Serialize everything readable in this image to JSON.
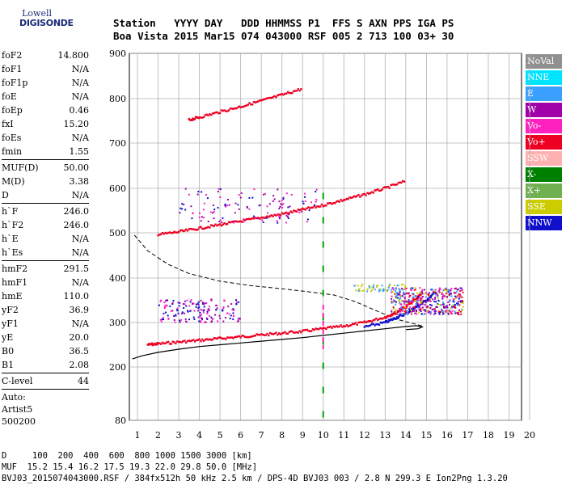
{
  "logo": {
    "line1": "Lowell",
    "line2": "DIGISONDE"
  },
  "header": {
    "row1": "Station   YYYY DAY   DDD HHMMSS P1  FFS S AXN PPS IGA PS",
    "row2": "Boa Vista 2015 Mar15 074 043000 RSF 005 2 713 100 03+ 30"
  },
  "params": [
    {
      "name": "foF2",
      "value": "14.800"
    },
    {
      "name": "foF1",
      "value": "N/A"
    },
    {
      "name": "foF1p",
      "value": "N/A"
    },
    {
      "name": "foE",
      "value": "N/A"
    },
    {
      "name": "foEp",
      "value": "0.46"
    },
    {
      "name": "fxI",
      "value": "15.20"
    },
    {
      "name": "foEs",
      "value": "N/A"
    },
    {
      "name": "fmin",
      "value": "1.55"
    },
    {
      "sep": true
    },
    {
      "name": "MUF(D)",
      "value": "50.00"
    },
    {
      "name": "M(D)",
      "value": "3.38"
    },
    {
      "name": "D",
      "value": "N/A"
    },
    {
      "sep": true
    },
    {
      "name": "h`F",
      "value": "246.0"
    },
    {
      "name": "h`F2",
      "value": "246.0"
    },
    {
      "name": "h`E",
      "value": "N/A"
    },
    {
      "name": "h`Es",
      "value": "N/A"
    },
    {
      "sep": true
    },
    {
      "name": "hmF2",
      "value": "291.5"
    },
    {
      "name": "hmF1",
      "value": "N/A"
    },
    {
      "name": "hmE",
      "value": "110.0"
    },
    {
      "name": "yF2",
      "value": "36.9"
    },
    {
      "name": "yF1",
      "value": "N/A"
    },
    {
      "name": "yE",
      "value": "20.0"
    },
    {
      "name": "B0",
      "value": "36.5"
    },
    {
      "name": "B1",
      "value": "2.08"
    },
    {
      "sep": true
    },
    {
      "name": "C-level",
      "value": "44"
    },
    {
      "sep": true
    }
  ],
  "autoscaling": {
    "line1": "Auto:",
    "line2": "Artist5",
    "line3": "500200"
  },
  "legend": [
    {
      "label": "NoVal",
      "color": "#909090"
    },
    {
      "label": "NNE",
      "color": "#00e5ff"
    },
    {
      "label": "E",
      "color": "#3aa0ff"
    },
    {
      "label": "W",
      "color": "#a000a8"
    },
    {
      "label": "Vo-",
      "color": "#ff20c0"
    },
    {
      "label": "Vo+",
      "color": "#ee0022"
    },
    {
      "label": "SSW",
      "color": "#ffb0b0"
    },
    {
      "label": "X-",
      "color": "#008000"
    },
    {
      "label": "X+",
      "color": "#70b050"
    },
    {
      "label": "SSE",
      "color": "#cccc00"
    },
    {
      "label": "NNW",
      "color": "#1010cc"
    }
  ],
  "footer": {
    "row1": "D     100  200  400  600  800 1000 1500 3000 [km]",
    "row2": "MUF  15.2 15.4 16.2 17.5 19.3 22.0 29.8 50.0 [MHz]",
    "row3": "BVJ03_2015074043000.RSF / 384fx512h 50 kHz 2.5 km / DPS-4D BVJ03 003 / 2.8 N 299.3 E Ion2Png 1.3.20"
  },
  "chart_data": {
    "type": "scatter",
    "xlim": [
      1,
      20
    ],
    "ylim": [
      80,
      900
    ],
    "x_ticks": [
      1,
      2,
      3,
      4,
      5,
      6,
      7,
      8,
      9,
      10,
      11,
      12,
      13,
      14,
      15,
      16,
      17,
      18,
      19,
      20
    ],
    "y_ticks": [
      80,
      200,
      300,
      400,
      500,
      600,
      700,
      800,
      900
    ],
    "grid": true,
    "legend_position": "right",
    "profile_curve": {
      "x": [
        0.75,
        1.2,
        2,
        3,
        4,
        5,
        6,
        7,
        8,
        9,
        10,
        11,
        12,
        13,
        14,
        14.5,
        14.8,
        14.6,
        14
      ],
      "y": [
        218,
        225,
        233,
        240,
        246,
        250,
        254,
        258,
        262,
        266,
        271,
        276,
        281,
        286,
        291,
        293,
        290,
        286,
        284
      ]
    },
    "topside_curve": {
      "x": [
        0.85,
        1.5,
        2.5,
        3.5,
        5,
        6.5,
        8,
        9.5,
        10.5,
        11.5,
        12.5,
        13.5,
        14.5,
        14.8
      ],
      "y": [
        495,
        460,
        430,
        410,
        393,
        383,
        376,
        368,
        362,
        348,
        328,
        308,
        296,
        292
      ]
    },
    "traces": [
      {
        "name": "F2 O-trace",
        "color": "#ee0022",
        "x": [
          1.5,
          2,
          3,
          4,
          5,
          6,
          7,
          8,
          9,
          10,
          11,
          12,
          13,
          13.5,
          14,
          14.5,
          14.8
        ],
        "y": [
          250,
          252,
          256,
          260,
          264,
          268,
          272,
          276,
          280,
          286,
          292,
          300,
          312,
          322,
          336,
          352,
          368
        ]
      },
      {
        "name": "F2 X-trace",
        "color": "#1010cc",
        "x": [
          12,
          13,
          13.5,
          14,
          14.5,
          15,
          15.5
        ],
        "y": [
          290,
          300,
          310,
          320,
          335,
          350,
          370
        ]
      },
      {
        "name": "Multiple echo",
        "color": "#ee0022",
        "x": [
          2,
          3,
          4,
          5,
          6,
          7,
          8,
          9,
          10,
          11,
          12,
          13,
          14
        ],
        "y": [
          496,
          502,
          510,
          518,
          526,
          534,
          542,
          552,
          562,
          574,
          586,
          600,
          616
        ]
      },
      {
        "name": "Triple echo",
        "color": "#ee0022",
        "x": [
          3.5,
          4,
          5,
          6,
          7,
          8,
          9
        ],
        "y": [
          752,
          758,
          770,
          782,
          795,
          808,
          822
        ]
      }
    ],
    "markers": [
      {
        "x": 10,
        "color": "#00a000"
      },
      {
        "x": 10,
        "color": "#ff20c0"
      }
    ]
  }
}
